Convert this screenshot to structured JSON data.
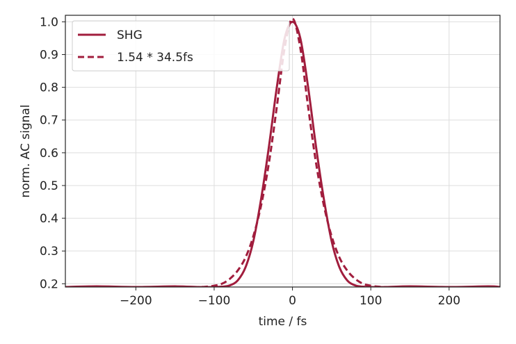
{
  "chart_data": {
    "type": "line",
    "title": "",
    "xlabel": "time / fs",
    "ylabel": "norm. AC signal",
    "xlim": [
      -290,
      265
    ],
    "ylim": [
      0.19,
      1.02
    ],
    "xticks": [
      -200,
      -100,
      0,
      100,
      200
    ],
    "xtick_labels": [
      "−200",
      "−100",
      "0",
      "100",
      "200"
    ],
    "yticks": [
      0.2,
      0.3,
      0.4,
      0.5,
      0.6,
      0.7,
      0.8,
      0.9,
      1.0
    ],
    "ytick_labels": [
      "0.2",
      "0.3",
      "0.4",
      "0.5",
      "0.6",
      "0.7",
      "0.8",
      "0.9",
      "1.0"
    ],
    "grid": true,
    "legend_position": "top-left",
    "color": "#a11d3d",
    "series": [
      {
        "name": "SHG",
        "style": "solid",
        "x": [
          -290,
          -250,
          -200,
          -150,
          -120,
          -100,
          -90,
          -80,
          -70,
          -60,
          -50,
          -40,
          -30,
          -20,
          -10,
          0,
          10,
          20,
          30,
          40,
          50,
          60,
          70,
          80,
          90,
          100,
          120,
          150,
          200,
          250,
          265
        ],
        "y": [
          0.19,
          0.192,
          0.19,
          0.192,
          0.19,
          0.19,
          0.191,
          0.195,
          0.21,
          0.25,
          0.33,
          0.46,
          0.62,
          0.8,
          0.95,
          1.0,
          0.95,
          0.8,
          0.62,
          0.46,
          0.33,
          0.25,
          0.21,
          0.195,
          0.191,
          0.19,
          0.19,
          0.192,
          0.19,
          0.192,
          0.19
        ]
      },
      {
        "name": "1.54 * 34.5fs",
        "style": "dashed",
        "x": [
          -290,
          -150,
          -120,
          -110,
          -100,
          -90,
          -80,
          -70,
          -60,
          -50,
          -40,
          -30,
          -20,
          -10,
          0,
          10,
          20,
          30,
          40,
          50,
          60,
          70,
          80,
          90,
          100,
          110,
          120,
          150,
          265
        ],
        "y": [
          0.19,
          0.19,
          0.19,
          0.191,
          0.194,
          0.2,
          0.215,
          0.24,
          0.28,
          0.345,
          0.44,
          0.57,
          0.74,
          0.92,
          1.01,
          0.92,
          0.74,
          0.57,
          0.44,
          0.345,
          0.28,
          0.24,
          0.215,
          0.2,
          0.194,
          0.191,
          0.19,
          0.19,
          0.19
        ]
      }
    ]
  }
}
